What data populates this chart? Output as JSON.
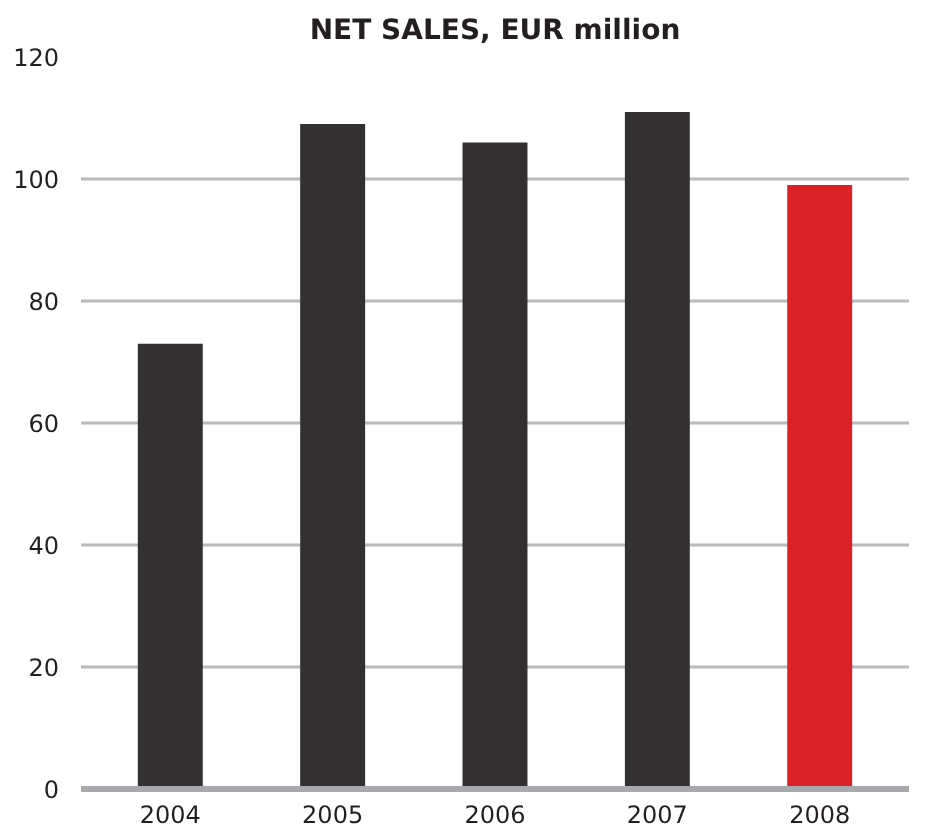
{
  "chart_data": {
    "type": "bar",
    "title": "NET SALES, EUR million",
    "categories": [
      "2004",
      "2005",
      "2006",
      "2007",
      "2008"
    ],
    "values": [
      73,
      109,
      106,
      111,
      99
    ],
    "colors": [
      "#323031",
      "#323031",
      "#323031",
      "#323031",
      "#da2128"
    ],
    "ylim": [
      0,
      120
    ],
    "yticks": [
      0,
      20,
      40,
      60,
      80,
      100,
      120
    ],
    "grid": "y"
  }
}
